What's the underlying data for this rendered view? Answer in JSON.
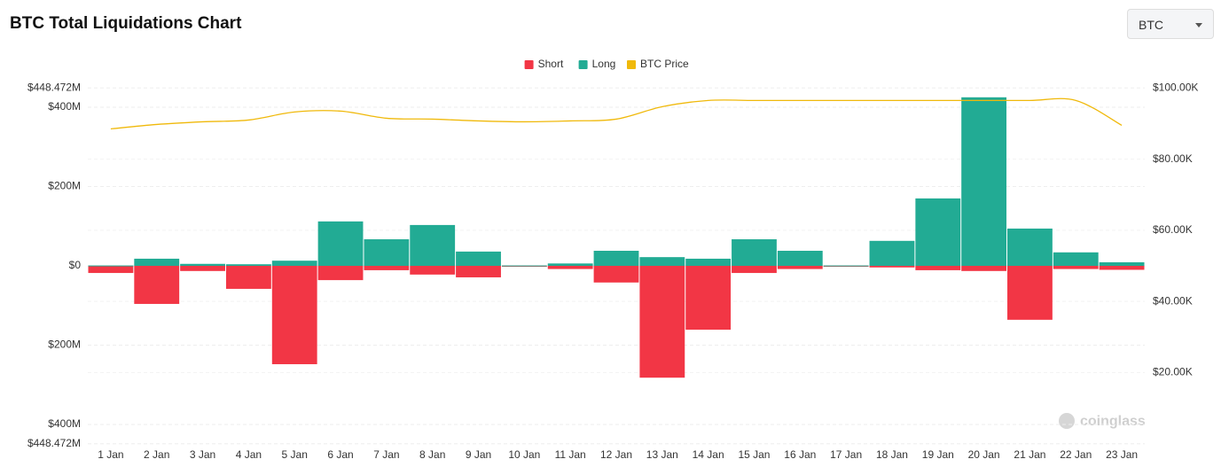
{
  "chart_data": {
    "type": "bar",
    "title": "BTC Total Liquidations Chart",
    "categories": [
      "1 Jan",
      "2 Jan",
      "3 Jan",
      "4 Jan",
      "5 Jan",
      "6 Jan",
      "7 Jan",
      "8 Jan",
      "9 Jan",
      "10 Jan",
      "11 Jan",
      "12 Jan",
      "13 Jan",
      "14 Jan",
      "15 Jan",
      "16 Jan",
      "17 Jan",
      "18 Jan",
      "19 Jan",
      "20 Jan",
      "21 Jan",
      "22 Jan",
      "23 Jan"
    ],
    "series": [
      {
        "name": "Short",
        "color": "#f23645",
        "values": [
          -18,
          -96,
          -13,
          -58,
          -248,
          -36,
          -11,
          -22,
          -29,
          -1,
          -8,
          -42,
          -282,
          -161,
          -18,
          -8,
          -2,
          -4,
          -11,
          -13,
          -136,
          -8,
          -10
        ]
      },
      {
        "name": "Long",
        "color": "#22ab94",
        "values": [
          1,
          18,
          5,
          4,
          13,
          112,
          67,
          103,
          36,
          1,
          6,
          38,
          22,
          18,
          67,
          38,
          1,
          63,
          170,
          425,
          94,
          34,
          9
        ]
      },
      {
        "name": "BTC Price",
        "color": "#f0b90b",
        "type": "line",
        "axis": "y2",
        "values": [
          88500,
          89750,
          90500,
          91000,
          93250,
          93500,
          91500,
          91250,
          90750,
          90500,
          90750,
          91250,
          94750,
          96500,
          96500,
          96500,
          96500,
          96500,
          96500,
          96500,
          96500,
          96500,
          89500
        ]
      }
    ],
    "ylim": [
      -448.472,
      448.472
    ],
    "yticks": [
      {
        "value": 448.472,
        "label": "$448.472M"
      },
      {
        "value": 400,
        "label": "$400M"
      },
      {
        "value": 200,
        "label": "$200M"
      },
      {
        "value": 0,
        "label": "$0"
      },
      {
        "value": -200,
        "label": "$200M"
      },
      {
        "value": -400,
        "label": "$400M"
      },
      {
        "value": -448.472,
        "label": "$448.472M"
      }
    ],
    "y2lim": [
      0,
      100000
    ],
    "y2ticks": [
      {
        "value": 100000,
        "label": "$100.00K"
      },
      {
        "value": 80000,
        "label": "$80.00K"
      },
      {
        "value": 60000,
        "label": "$60.00K"
      },
      {
        "value": 40000,
        "label": "$40.00K"
      },
      {
        "value": 20000,
        "label": "$20.00K"
      }
    ],
    "grid": true,
    "legend": "top"
  },
  "selector": "BTC",
  "watermark": "coinglass"
}
